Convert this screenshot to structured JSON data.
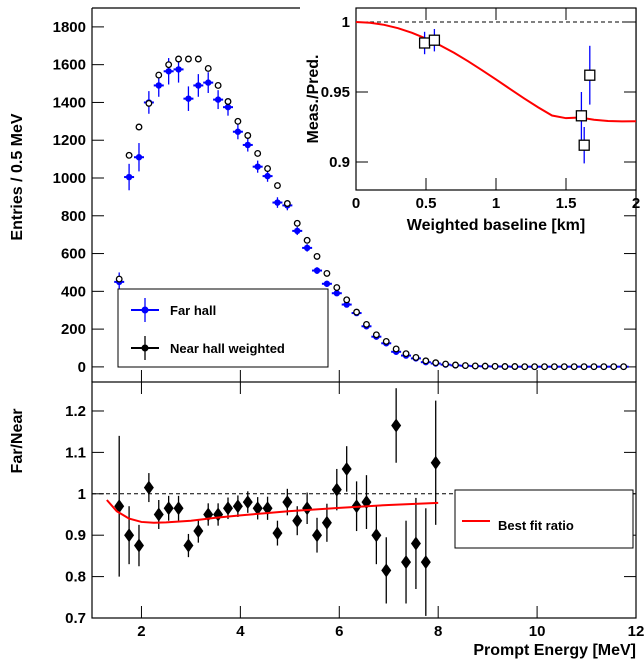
{
  "chart_data": [
    {
      "id": "spectrum",
      "type": "scatter",
      "xlabel": "",
      "ylabel": "Entries / 0.5 MeV",
      "xlim": [
        1.0,
        12.0
      ],
      "ylim": [
        -80,
        1900
      ],
      "yticks": [
        0,
        200,
        400,
        600,
        800,
        1000,
        1200,
        1400,
        1600,
        1800
      ],
      "legend_position": "bottom-left",
      "series": [
        {
          "name": "Far hall",
          "color": "#0000ff",
          "marker": "star",
          "x": [
            1.55,
            1.75,
            1.95,
            2.15,
            2.35,
            2.55,
            2.75,
            2.95,
            3.15,
            3.35,
            3.55,
            3.75,
            3.95,
            4.15,
            4.35,
            4.55,
            4.75,
            4.95,
            5.15,
            5.35,
            5.55,
            5.75,
            5.95,
            6.15,
            6.35,
            6.55,
            6.75,
            6.95,
            7.15,
            7.35,
            7.55,
            7.75,
            7.95,
            8.15,
            8.35,
            8.55,
            8.75,
            8.95,
            9.15,
            9.35,
            9.55,
            9.75,
            9.95,
            10.15,
            10.35,
            10.55,
            10.75,
            10.95,
            11.15,
            11.35,
            11.55,
            11.75
          ],
          "y": [
            450,
            1005,
            1110,
            1400,
            1490,
            1565,
            1575,
            1420,
            1490,
            1505,
            1415,
            1375,
            1245,
            1175,
            1060,
            1010,
            870,
            855,
            720,
            630,
            510,
            440,
            390,
            330,
            285,
            215,
            160,
            125,
            80,
            60,
            45,
            25,
            18,
            12,
            8,
            6,
            4,
            3,
            2,
            2,
            1,
            1,
            1,
            1,
            1,
            1,
            1,
            1,
            1,
            1,
            1,
            1
          ],
          "yerr": [
            50,
            70,
            75,
            60,
            60,
            70,
            70,
            65,
            60,
            55,
            50,
            45,
            40,
            35,
            32,
            30,
            28,
            26,
            22,
            20,
            18,
            16,
            15,
            14,
            12,
            11,
            10,
            9,
            8,
            7,
            6,
            5,
            4,
            3,
            3,
            2,
            2,
            2,
            1,
            1,
            1,
            1,
            1,
            1,
            1,
            1,
            1,
            1,
            1,
            1,
            1,
            1
          ]
        },
        {
          "name": "Near hall weighted",
          "color": "#000000",
          "marker": "open-circle",
          "x": [
            1.55,
            1.75,
            1.95,
            2.15,
            2.35,
            2.55,
            2.75,
            2.95,
            3.15,
            3.35,
            3.55,
            3.75,
            3.95,
            4.15,
            4.35,
            4.55,
            4.75,
            4.95,
            5.15,
            5.35,
            5.55,
            5.75,
            5.95,
            6.15,
            6.35,
            6.55,
            6.75,
            6.95,
            7.15,
            7.35,
            7.55,
            7.75,
            7.95,
            8.15,
            8.35,
            8.55,
            8.75,
            8.95,
            9.15,
            9.35,
            9.55,
            9.75,
            9.95,
            10.15,
            10.35,
            10.55,
            10.75,
            10.95,
            11.15,
            11.35,
            11.55,
            11.75
          ],
          "y": [
            465,
            1120,
            1270,
            1395,
            1545,
            1600,
            1630,
            1630,
            1630,
            1580,
            1490,
            1405,
            1300,
            1225,
            1130,
            1050,
            960,
            865,
            760,
            670,
            585,
            495,
            420,
            355,
            290,
            225,
            170,
            135,
            95,
            70,
            50,
            32,
            22,
            15,
            10,
            7,
            5,
            4,
            3,
            2,
            2,
            1,
            1,
            1,
            1,
            1,
            1,
            1,
            1,
            1,
            1,
            1
          ],
          "yerr": [
            10,
            12,
            12,
            12,
            12,
            12,
            12,
            12,
            12,
            12,
            11,
            11,
            10,
            10,
            9,
            9,
            8,
            8,
            7,
            7,
            6,
            6,
            5,
            5,
            5,
            4,
            4,
            3,
            3,
            3,
            2,
            2,
            2,
            1,
            1,
            1,
            1,
            1,
            1,
            1,
            1,
            1,
            1,
            1,
            1,
            1,
            1,
            1,
            1,
            1,
            1,
            1
          ]
        }
      ]
    },
    {
      "id": "ratio",
      "type": "scatter",
      "xlabel": "Prompt Energy [MeV]",
      "ylabel": "Far/Near",
      "xlim": [
        1.0,
        12.0
      ],
      "ylim": [
        0.7,
        1.27
      ],
      "xticks": [
        2,
        4,
        6,
        8,
        10,
        12
      ],
      "yticks": [
        0.7,
        0.8,
        0.9,
        1,
        1.1,
        1.2
      ],
      "reference_line": 1.0,
      "legend_position": "right",
      "series": [
        {
          "name": "",
          "color": "#000000",
          "marker": "diamond",
          "x": [
            1.55,
            1.75,
            1.95,
            2.15,
            2.35,
            2.55,
            2.75,
            2.95,
            3.15,
            3.35,
            3.55,
            3.75,
            3.95,
            4.15,
            4.35,
            4.55,
            4.75,
            4.95,
            5.15,
            5.35,
            5.55,
            5.75,
            5.95,
            6.15,
            6.35,
            6.55,
            6.75,
            6.95,
            7.15,
            7.35,
            7.55,
            7.75,
            7.95
          ],
          "y": [
            0.97,
            0.9,
            0.875,
            1.015,
            0.95,
            0.965,
            0.965,
            0.875,
            0.91,
            0.95,
            0.95,
            0.965,
            0.97,
            0.98,
            0.965,
            0.965,
            0.905,
            0.98,
            0.935,
            0.965,
            0.9,
            0.93,
            1.01,
            1.06,
            0.97,
            0.98,
            0.9,
            0.815,
            1.165,
            0.835,
            0.88,
            0.835,
            1.075
          ],
          "yerr": [
            0.17,
            0.07,
            0.05,
            0.035,
            0.035,
            0.03,
            0.03,
            0.028,
            0.028,
            0.027,
            0.027,
            0.026,
            0.026,
            0.026,
            0.027,
            0.028,
            0.03,
            0.032,
            0.035,
            0.038,
            0.042,
            0.046,
            0.05,
            0.055,
            0.06,
            0.065,
            0.07,
            0.08,
            0.09,
            0.1,
            0.11,
            0.13,
            0.15
          ]
        },
        {
          "name": "Best fit ratio",
          "color": "#ff0000",
          "marker": "line",
          "x": [
            1.3,
            1.5,
            1.75,
            2.0,
            2.25,
            2.5,
            3.0,
            3.5,
            4.0,
            4.5,
            5.0,
            6.0,
            7.0,
            8.0
          ],
          "y": [
            0.985,
            0.958,
            0.94,
            0.932,
            0.93,
            0.931,
            0.935,
            0.942,
            0.948,
            0.953,
            0.958,
            0.966,
            0.973,
            0.978
          ]
        }
      ]
    },
    {
      "id": "inset",
      "type": "scatter",
      "xlabel": "Weighted baseline [km]",
      "ylabel": "Meas./Pred.",
      "xlim": [
        0,
        2
      ],
      "ylim": [
        0.88,
        1.01
      ],
      "xticks": [
        0,
        0.5,
        1,
        1.5,
        2
      ],
      "yticks": [
        0.9,
        0.95,
        1
      ],
      "reference_line": 1.0,
      "series": [
        {
          "name": "",
          "color": "#000000",
          "marker": "open-square",
          "x": [
            0.49,
            0.56,
            1.61,
            1.63,
            1.67
          ],
          "y": [
            0.985,
            0.987,
            0.933,
            0.912,
            0.962
          ],
          "yerr": [
            0.008,
            0.008,
            0.017,
            0.013,
            0.021
          ]
        },
        {
          "name": "",
          "color": "#ff0000",
          "marker": "line",
          "x": [
            0,
            0.1,
            0.2,
            0.3,
            0.4,
            0.5,
            0.6,
            0.7,
            0.8,
            0.9,
            1.0,
            1.1,
            1.2,
            1.3,
            1.4,
            1.5,
            1.6,
            1.7,
            1.8,
            1.9,
            2.0
          ],
          "y": [
            1.0,
            0.9995,
            0.998,
            0.9956,
            0.9923,
            0.9882,
            0.9834,
            0.978,
            0.972,
            0.9656,
            0.959,
            0.9522,
            0.9455,
            0.9391,
            0.9332,
            0.9313,
            0.9318,
            0.9302,
            0.9293,
            0.929,
            0.9291
          ]
        }
      ]
    }
  ]
}
